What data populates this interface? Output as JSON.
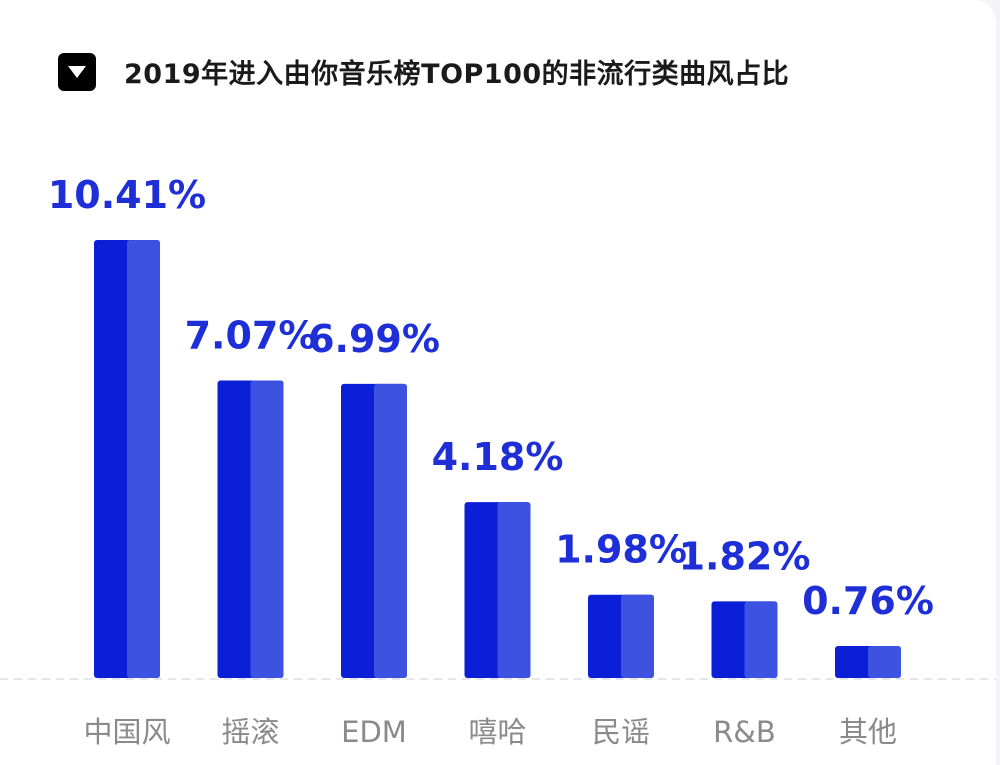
{
  "header": {
    "title": "2019年进入由你音乐榜TOP100的非流行类曲风占比",
    "toggle_icon": "triangle-down-icon"
  },
  "chart_data": {
    "type": "bar",
    "title": "2019年进入由你音乐榜TOP100的非流行类曲风占比",
    "categories": [
      "中国风",
      "摇滚",
      "EDM",
      "嘻哈",
      "民谣",
      "R&B",
      "其他"
    ],
    "values": [
      10.41,
      7.07,
      6.99,
      4.18,
      1.98,
      1.82,
      0.76
    ],
    "value_labels": [
      "10.41%",
      "7.07%",
      "6.99%",
      "4.18%",
      "1.98%",
      "1.82%",
      "0.76%"
    ],
    "unit": "%",
    "xlabel": "",
    "ylabel": "",
    "ylim": [
      0,
      10.41
    ],
    "grid": false,
    "legend": "none",
    "colors": {
      "bar_dark": "#0a1fd6",
      "bar_light": "#3d52e0",
      "label": "#1f2fd8",
      "axis": "#e6e6ee"
    }
  }
}
